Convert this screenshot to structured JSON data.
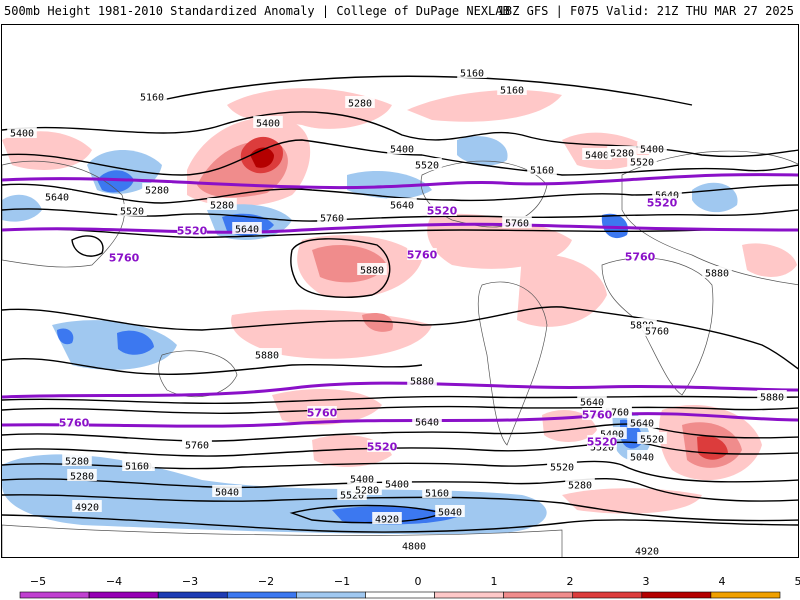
{
  "header": {
    "title_left": "500mb Height 1981-2010 Standardized Anomaly | College of DuPage NEXLAB",
    "title_right": "18Z GFS | F075 Valid: 21Z THU MAR 27 2025"
  },
  "contour_labels": {
    "black": [
      "5160",
      "5160",
      "5160",
      "5280",
      "5400",
      "5400",
      "5400",
      "5400",
      "5520",
      "5280",
      "5640",
      "5520",
      "5640",
      "5400",
      "5520",
      "5160",
      "5280",
      "5640",
      "5280",
      "5640",
      "5760",
      "5760",
      "5880",
      "5880",
      "5880",
      "5880",
      "5880",
      "5760",
      "5640",
      "5760",
      "5760",
      "5520",
      "5280",
      "5160",
      "5640",
      "5400",
      "5520",
      "5400",
      "5760",
      "5520",
      "5280",
      "5040",
      "4920",
      "4920",
      "4800",
      "5040",
      "5160",
      "5400",
      "5520",
      "5280",
      "5040",
      "5160",
      "4920",
      "5280",
      "5400",
      "5520",
      "5640",
      "5760",
      "5880"
    ],
    "purple": [
      "5520",
      "5520",
      "5520",
      "5760",
      "5760",
      "5760",
      "5760",
      "5760",
      "5760",
      "5520",
      "5520"
    ]
  },
  "colorbar": {
    "ticks": [
      "−5",
      "−4",
      "−3",
      "−2",
      "−1",
      "0",
      "1",
      "2",
      "3",
      "4",
      "5"
    ],
    "colors": [
      "#c040d0",
      "#9600b4",
      "#1e3cb4",
      "#3c78f0",
      "#a0c8f0",
      "#ffffff",
      "#ffc8c8",
      "#f08c8c",
      "#dc3c3c",
      "#b40000",
      "#f0a000"
    ]
  }
}
